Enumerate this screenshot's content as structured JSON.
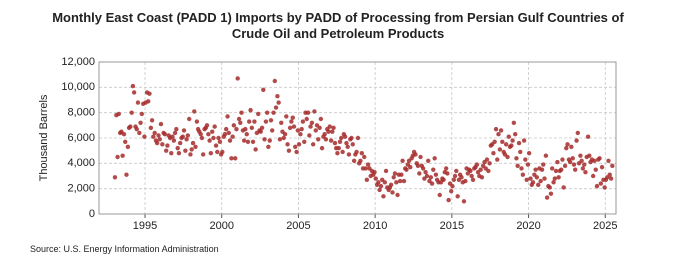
{
  "chart_data": {
    "type": "scatter",
    "title": [
      "Monthly East Coast (PADD 1) Imports by PADD of Processing from Persian Gulf Countries of",
      "Crude Oil and Petroleum Products"
    ],
    "y_label": "Thousand Barrels",
    "source": "Source: U.S. Energy Information Administration",
    "color": "#a52a2a",
    "grid": true,
    "xlim": [
      1992,
      2025.7
    ],
    "ylim": [
      0,
      12000
    ],
    "xticks": [
      1995,
      2000,
      2005,
      2010,
      2015,
      2020,
      2025
    ],
    "yticks": [
      0,
      {
        "value": 2000,
        "label": "2,000"
      },
      {
        "value": 4000,
        "label": "4,000"
      },
      {
        "value": 6000,
        "label": "6,000"
      },
      {
        "value": 8000,
        "label": "8,000"
      },
      {
        "value": 10000,
        "label": "10,000"
      },
      {
        "value": 12000,
        "label": "12,000"
      }
    ],
    "x": [
      1993.04,
      1993.13,
      1993.21,
      1993.29,
      1993.38,
      1993.46,
      1993.54,
      1993.63,
      1993.71,
      1993.79,
      1993.88,
      1993.96,
      1994.04,
      1994.13,
      1994.21,
      1994.29,
      1994.38,
      1994.46,
      1994.54,
      1994.63,
      1994.71,
      1994.79,
      1994.88,
      1994.96,
      1995.04,
      1995.13,
      1995.21,
      1995.29,
      1995.38,
      1995.46,
      1995.54,
      1995.63,
      1995.71,
      1995.79,
      1995.88,
      1995.96,
      1996.04,
      1996.13,
      1996.21,
      1996.29,
      1996.38,
      1996.46,
      1996.54,
      1996.63,
      1996.71,
      1996.79,
      1996.88,
      1996.96,
      1997.04,
      1997.13,
      1997.21,
      1997.29,
      1997.38,
      1997.46,
      1997.54,
      1997.63,
      1997.71,
      1997.79,
      1997.88,
      1997.96,
      1998.04,
      1998.13,
      1998.21,
      1998.29,
      1998.38,
      1998.46,
      1998.54,
      1998.63,
      1998.71,
      1998.79,
      1998.88,
      1998.96,
      1999.04,
      1999.13,
      1999.21,
      1999.29,
      1999.38,
      1999.46,
      1999.54,
      1999.63,
      1999.71,
      1999.79,
      1999.88,
      1999.96,
      2000.04,
      2000.13,
      2000.21,
      2000.29,
      2000.38,
      2000.46,
      2000.54,
      2000.63,
      2000.71,
      2000.79,
      2000.88,
      2000.96,
      2001.04,
      2001.13,
      2001.21,
      2001.29,
      2001.38,
      2001.46,
      2001.54,
      2001.63,
      2001.71,
      2001.79,
      2001.88,
      2001.96,
      2002.04,
      2002.13,
      2002.21,
      2002.29,
      2002.38,
      2002.46,
      2002.54,
      2002.63,
      2002.71,
      2002.79,
      2002.88,
      2002.96,
      2003.04,
      2003.13,
      2003.21,
      2003.29,
      2003.38,
      2003.46,
      2003.54,
      2003.63,
      2003.71,
      2003.79,
      2003.88,
      2003.96,
      2004.04,
      2004.13,
      2004.21,
      2004.29,
      2004.38,
      2004.46,
      2004.54,
      2004.63,
      2004.71,
      2004.79,
      2004.88,
      2004.96,
      2005.04,
      2005.13,
      2005.21,
      2005.29,
      2005.38,
      2005.46,
      2005.54,
      2005.63,
      2005.71,
      2005.79,
      2005.88,
      2005.96,
      2006.04,
      2006.13,
      2006.21,
      2006.29,
      2006.38,
      2006.46,
      2006.54,
      2006.63,
      2006.71,
      2006.79,
      2006.88,
      2006.96,
      2007.04,
      2007.13,
      2007.21,
      2007.29,
      2007.38,
      2007.46,
      2007.54,
      2007.63,
      2007.71,
      2007.79,
      2007.88,
      2007.96,
      2008.04,
      2008.13,
      2008.21,
      2008.29,
      2008.38,
      2008.46,
      2008.54,
      2008.63,
      2008.71,
      2008.79,
      2008.88,
      2008.96,
      2009.04,
      2009.13,
      2009.21,
      2009.29,
      2009.38,
      2009.46,
      2009.54,
      2009.63,
      2009.71,
      2009.79,
      2009.88,
      2009.96,
      2010.04,
      2010.13,
      2010.21,
      2010.29,
      2010.38,
      2010.46,
      2010.54,
      2010.63,
      2010.71,
      2010.79,
      2010.88,
      2010.96,
      2011.04,
      2011.13,
      2011.21,
      2011.29,
      2011.38,
      2011.46,
      2011.54,
      2011.63,
      2011.71,
      2011.79,
      2011.88,
      2011.96,
      2012.04,
      2012.13,
      2012.21,
      2012.29,
      2012.38,
      2012.46,
      2012.54,
      2012.63,
      2012.71,
      2012.79,
      2012.88,
      2012.96,
      2013.04,
      2013.13,
      2013.21,
      2013.29,
      2013.38,
      2013.46,
      2013.54,
      2013.63,
      2013.71,
      2013.79,
      2013.88,
      2013.96,
      2014.04,
      2014.13,
      2014.21,
      2014.29,
      2014.38,
      2014.46,
      2014.54,
      2014.63,
      2014.71,
      2014.79,
      2014.88,
      2014.96,
      2015.04,
      2015.13,
      2015.21,
      2015.29,
      2015.38,
      2015.46,
      2015.54,
      2015.63,
      2015.71,
      2015.79,
      2015.88,
      2015.96,
      2016.04,
      2016.13,
      2016.21,
      2016.29,
      2016.38,
      2016.46,
      2016.54,
      2016.63,
      2016.71,
      2016.79,
      2016.88,
      2016.96,
      2017.04,
      2017.13,
      2017.21,
      2017.29,
      2017.38,
      2017.46,
      2017.54,
      2017.63,
      2017.71,
      2017.79,
      2017.88,
      2017.96,
      2018.04,
      2018.13,
      2018.21,
      2018.29,
      2018.38,
      2018.46,
      2018.54,
      2018.63,
      2018.71,
      2018.79,
      2018.88,
      2018.96,
      2019.04,
      2019.13,
      2019.21,
      2019.29,
      2019.38,
      2019.46,
      2019.54,
      2019.63,
      2019.71,
      2019.79,
      2019.88,
      2019.96,
      2020.04,
      2020.13,
      2020.21,
      2020.29,
      2020.38,
      2020.46,
      2020.54,
      2020.63,
      2020.71,
      2020.79,
      2020.88,
      2020.96,
      2021.04,
      2021.13,
      2021.21,
      2021.29,
      2021.38,
      2021.46,
      2021.54,
      2021.63,
      2021.71,
      2021.79,
      2021.88,
      2021.96,
      2022.04,
      2022.13,
      2022.21,
      2022.29,
      2022.38,
      2022.46,
      2022.54,
      2022.63,
      2022.71,
      2022.79,
      2022.88,
      2022.96,
      2023.04,
      2023.13,
      2023.21,
      2023.29,
      2023.38,
      2023.46,
      2023.54,
      2023.63,
      2023.71,
      2023.79,
      2023.88,
      2023.96,
      2024.04,
      2024.13,
      2024.21,
      2024.29,
      2024.38,
      2024.46,
      2024.54,
      2024.63,
      2024.71,
      2024.79,
      2024.88,
      2024.96,
      2025.04,
      2025.13,
      2025.21,
      2025.29,
      2025.38,
      2025.46
    ],
    "values": [
      2900,
      7800,
      4500,
      7900,
      6400,
      6500,
      4600,
      6300,
      5700,
      3100,
      5300,
      6800,
      6900,
      8000,
      10100,
      9600,
      6900,
      6700,
      8800,
      6400,
      7200,
      7900,
      8700,
      6100,
      8800,
      9600,
      8900,
      9500,
      6800,
      7400,
      6100,
      6400,
      5800,
      5600,
      6200,
      5900,
      7100,
      5500,
      6400,
      6300,
      5000,
      5400,
      6200,
      6000,
      4800,
      6100,
      5800,
      6400,
      6700,
      5200,
      4800,
      5600,
      6000,
      6100,
      6600,
      5000,
      5900,
      6200,
      7500,
      4700,
      5100,
      5600,
      8100,
      5300,
      7300,
      6700,
      6500,
      6300,
      6000,
      4700,
      6700,
      6800,
      7000,
      6300,
      5800,
      4800,
      6500,
      6000,
      6900,
      5400,
      4900,
      6000,
      5700,
      4700,
      4900,
      6100,
      6300,
      6700,
      7700,
      6400,
      5800,
      4400,
      6100,
      7000,
      4400,
      6700,
      10700,
      7500,
      7200,
      8000,
      6600,
      5800,
      6700,
      6300,
      5700,
      7300,
      8200,
      6800,
      5700,
      7300,
      5100,
      6400,
      7900,
      6600,
      6500,
      6800,
      9800,
      5900,
      7300,
      8000,
      5300,
      5800,
      7400,
      6600,
      8000,
      10500,
      8400,
      9300,
      8800,
      5900,
      7200,
      6500,
      6000,
      6300,
      7700,
      5500,
      5000,
      6800,
      7300,
      7600,
      6900,
      5300,
      4900,
      6600,
      5500,
      6300,
      6700,
      7300,
      5700,
      8000,
      7500,
      8000,
      6200,
      6900,
      7200,
      5500,
      8100,
      6600,
      7000,
      5900,
      6800,
      7500,
      5200,
      6100,
      6300,
      5900,
      6700,
      6500,
      6900,
      5800,
      6500,
      6800,
      5600,
      5200,
      4800,
      5200,
      5700,
      6000,
      4900,
      6300,
      6100,
      5600,
      5300,
      4700,
      5900,
      6000,
      5500,
      4200,
      4700,
      4900,
      6000,
      4000,
      4200,
      4800,
      3600,
      4500,
      3600,
      2700,
      3900,
      3600,
      3000,
      3400,
      3100,
      3300,
      2800,
      2300,
      2500,
      1900,
      2200,
      2700,
      1400,
      2500,
      3400,
      2100,
      1900,
      2100,
      2300,
      1700,
      2900,
      3200,
      2500,
      1500,
      3100,
      2600,
      3100,
      4200,
      2600,
      3600,
      3500,
      3900,
      4200,
      3700,
      4400,
      4600,
      4900,
      4700,
      4000,
      3800,
      3200,
      4500,
      3800,
      3600,
      2800,
      3300,
      3000,
      4200,
      2600,
      2900,
      2400,
      3500,
      4400,
      3100,
      2700,
      2500,
      1500,
      2500,
      2800,
      2700,
      3300,
      3600,
      3200,
      1100,
      2400,
      1800,
      2200,
      2700,
      3000,
      3400,
      1400,
      2700,
      3100,
      2900,
      2500,
      1000,
      2600,
      3600,
      3200,
      3500,
      3400,
      3000,
      2700,
      3600,
      3700,
      3900,
      3300,
      3000,
      3500,
      2900,
      3800,
      4100,
      3600,
      4300,
      3400,
      4000,
      5400,
      5500,
      4800,
      5700,
      6700,
      4300,
      6300,
      5100,
      6600,
      5700,
      4900,
      4700,
      5500,
      4500,
      6100,
      5300,
      5400,
      5800,
      7200,
      6300,
      4400,
      3800,
      5600,
      4900,
      3600,
      3100,
      5800,
      4300,
      2700,
      3900,
      4800,
      2800,
      2300,
      2500,
      3100,
      3500,
      2900,
      2300,
      3600,
      2600,
      3500,
      3900,
      2800,
      4600,
      1300,
      2200,
      2100,
      1600,
      3600,
      2500,
      2800,
      3400,
      4100,
      2900,
      3400,
      3500,
      4300,
      2100,
      3800,
      5200,
      5500,
      4300,
      4100,
      5300,
      4400,
      3900,
      3500,
      5800,
      6400,
      4000,
      4600,
      4200,
      3600,
      3900,
      3300,
      4500,
      6100,
      4600,
      4100,
      4300,
      3000,
      4200,
      3500,
      2200,
      4300,
      4400,
      2400,
      3700,
      2700,
      2100,
      2700,
      2900,
      4200,
      3100,
      2800,
      3800
    ]
  }
}
